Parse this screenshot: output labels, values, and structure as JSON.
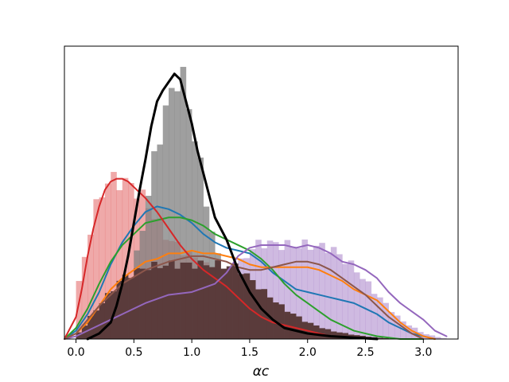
{
  "chart_data": {
    "type": "area",
    "title": "",
    "xlabel": "αc",
    "ylabel": "",
    "xlim": [
      -0.1,
      3.3
    ],
    "ylim": [
      0,
      1.06
    ],
    "x_ticks": [
      "0.0",
      "0.5",
      "1.0",
      "1.5",
      "2.0",
      "2.5",
      "3.0"
    ],
    "x_tick_values": [
      0.0,
      0.5,
      1.0,
      1.5,
      2.0,
      2.5,
      3.0
    ],
    "grid": false,
    "bin_width": 0.05,
    "histograms": [
      {
        "color": "#9467bd",
        "alpha": 0.45,
        "x": [
          0.0,
          0.2,
          0.4,
          0.6,
          0.8,
          1.0,
          1.2,
          1.4,
          1.5,
          1.6,
          1.8,
          2.0,
          2.2,
          2.4,
          2.6,
          2.8,
          3.0,
          3.2
        ],
        "y": [
          0.0,
          0.05,
          0.11,
          0.15,
          0.19,
          0.23,
          0.23,
          0.26,
          0.32,
          0.35,
          0.34,
          0.34,
          0.33,
          0.26,
          0.16,
          0.07,
          0.02,
          0.0
        ]
      },
      {
        "color": "#d62728",
        "alpha": 0.4,
        "x": [
          0.0,
          0.1,
          0.2,
          0.3,
          0.4,
          0.5,
          0.6,
          0.8,
          1.0,
          1.2,
          1.4,
          1.6,
          1.8,
          2.0,
          2.2,
          2.4
        ],
        "y": [
          0.15,
          0.35,
          0.52,
          0.58,
          0.57,
          0.55,
          0.5,
          0.36,
          0.3,
          0.24,
          0.17,
          0.09,
          0.04,
          0.02,
          0.01,
          0.0
        ]
      },
      {
        "color": "#7f7f7f",
        "alpha": 0.75,
        "x": [
          0.1,
          0.3,
          0.5,
          0.6,
          0.7,
          0.8,
          0.9,
          1.0,
          1.1,
          1.2,
          1.3,
          1.4,
          1.5,
          1.6,
          1.8,
          2.0,
          2.2,
          2.4
        ],
        "y": [
          0.0,
          0.05,
          0.25,
          0.46,
          0.71,
          0.86,
          0.98,
          0.8,
          0.56,
          0.33,
          0.2,
          0.14,
          0.08,
          0.05,
          0.02,
          0.01,
          0.0,
          0.0
        ]
      },
      {
        "color": "#5a3b3b",
        "alpha": 1.0,
        "x": [
          0.0,
          0.2,
          0.4,
          0.6,
          0.8,
          1.0,
          1.2,
          1.4,
          1.6,
          1.8,
          2.0,
          2.2,
          2.4,
          2.6,
          2.8
        ],
        "y": [
          0.01,
          0.12,
          0.22,
          0.26,
          0.27,
          0.27,
          0.27,
          0.26,
          0.18,
          0.11,
          0.06,
          0.03,
          0.015,
          0.005,
          0.0
        ]
      }
    ],
    "series": [
      {
        "color": "#1f77b4",
        "width": 2,
        "x": [
          -0.1,
          0.0,
          0.1,
          0.2,
          0.3,
          0.4,
          0.5,
          0.6,
          0.7,
          0.8,
          0.9,
          1.0,
          1.1,
          1.2,
          1.3,
          1.4,
          1.5,
          1.6,
          1.7,
          1.8,
          1.9,
          2.0,
          2.1,
          2.2,
          2.3,
          2.4,
          2.5,
          2.6,
          2.7,
          2.8,
          2.9,
          3.0,
          3.1
        ],
        "y": [
          0.0,
          0.03,
          0.09,
          0.17,
          0.27,
          0.35,
          0.41,
          0.46,
          0.48,
          0.47,
          0.45,
          0.42,
          0.38,
          0.35,
          0.33,
          0.32,
          0.31,
          0.28,
          0.24,
          0.21,
          0.18,
          0.17,
          0.16,
          0.15,
          0.14,
          0.13,
          0.11,
          0.09,
          0.06,
          0.04,
          0.02,
          0.01,
          0.0
        ]
      },
      {
        "color": "#ff7f0e",
        "width": 2,
        "x": [
          -0.1,
          0.0,
          0.1,
          0.2,
          0.3,
          0.4,
          0.5,
          0.6,
          0.7,
          0.8,
          0.9,
          1.0,
          1.1,
          1.2,
          1.3,
          1.4,
          1.5,
          1.6,
          1.7,
          1.8,
          1.9,
          2.0,
          2.1,
          2.2,
          2.3,
          2.4,
          2.5,
          2.6,
          2.7,
          2.8,
          2.9,
          3.0,
          3.1
        ],
        "y": [
          0.0,
          0.02,
          0.06,
          0.12,
          0.18,
          0.22,
          0.25,
          0.28,
          0.29,
          0.31,
          0.31,
          0.32,
          0.31,
          0.31,
          0.3,
          0.29,
          0.27,
          0.26,
          0.26,
          0.26,
          0.26,
          0.26,
          0.25,
          0.23,
          0.21,
          0.18,
          0.16,
          0.14,
          0.1,
          0.06,
          0.03,
          0.01,
          0.0
        ]
      },
      {
        "color": "#2ca02c",
        "width": 2,
        "x": [
          -0.1,
          0.0,
          0.1,
          0.2,
          0.3,
          0.4,
          0.5,
          0.6,
          0.7,
          0.8,
          0.9,
          1.0,
          1.1,
          1.2,
          1.3,
          1.4,
          1.5,
          1.6,
          1.7,
          1.8,
          1.9,
          2.0,
          2.1,
          2.2,
          2.3,
          2.4,
          2.5,
          2.6,
          2.7,
          2.8,
          2.9,
          3.0
        ],
        "y": [
          0.0,
          0.04,
          0.11,
          0.2,
          0.28,
          0.34,
          0.38,
          0.42,
          0.43,
          0.44,
          0.44,
          0.43,
          0.41,
          0.38,
          0.36,
          0.34,
          0.32,
          0.29,
          0.25,
          0.2,
          0.16,
          0.13,
          0.1,
          0.07,
          0.05,
          0.03,
          0.02,
          0.01,
          0.005,
          0.0,
          0.0,
          0.0
        ]
      },
      {
        "color": "#d62728",
        "width": 2,
        "x": [
          -0.1,
          0.0,
          0.05,
          0.1,
          0.15,
          0.2,
          0.25,
          0.3,
          0.35,
          0.4,
          0.45,
          0.5,
          0.6,
          0.7,
          0.8,
          0.9,
          1.0,
          1.1,
          1.2,
          1.3,
          1.4,
          1.5,
          1.6,
          1.7,
          1.8,
          1.9,
          2.0,
          2.1,
          2.2,
          2.4,
          2.6
        ],
        "y": [
          0.0,
          0.08,
          0.18,
          0.3,
          0.4,
          0.48,
          0.54,
          0.57,
          0.58,
          0.58,
          0.57,
          0.55,
          0.51,
          0.46,
          0.4,
          0.34,
          0.29,
          0.25,
          0.22,
          0.19,
          0.15,
          0.11,
          0.08,
          0.06,
          0.05,
          0.04,
          0.03,
          0.02,
          0.01,
          0.005,
          0.0
        ]
      },
      {
        "color": "#9467bd",
        "width": 2,
        "x": [
          -0.1,
          0.0,
          0.2,
          0.4,
          0.6,
          0.8,
          1.0,
          1.2,
          1.3,
          1.4,
          1.5,
          1.6,
          1.7,
          1.8,
          1.9,
          2.0,
          2.1,
          2.2,
          2.3,
          2.4,
          2.5,
          2.6,
          2.7,
          2.8,
          2.9,
          3.0,
          3.1,
          3.2
        ],
        "y": [
          0.0,
          0.01,
          0.05,
          0.09,
          0.13,
          0.16,
          0.17,
          0.2,
          0.24,
          0.3,
          0.33,
          0.34,
          0.34,
          0.34,
          0.33,
          0.34,
          0.33,
          0.31,
          0.28,
          0.27,
          0.25,
          0.22,
          0.17,
          0.13,
          0.1,
          0.07,
          0.03,
          0.01
        ]
      },
      {
        "color": "#8c564b",
        "width": 2,
        "x": [
          -0.1,
          0.0,
          0.2,
          0.4,
          0.6,
          0.8,
          1.0,
          1.1,
          1.2,
          1.3,
          1.4,
          1.5,
          1.6,
          1.7,
          1.8,
          1.9,
          2.0,
          2.1,
          2.2,
          2.3,
          2.4,
          2.5,
          2.6,
          2.7,
          2.8,
          2.9,
          3.0
        ],
        "y": [
          0.0,
          0.02,
          0.12,
          0.2,
          0.25,
          0.28,
          0.3,
          0.3,
          0.29,
          0.28,
          0.26,
          0.25,
          0.25,
          0.26,
          0.27,
          0.28,
          0.28,
          0.27,
          0.25,
          0.22,
          0.19,
          0.16,
          0.12,
          0.08,
          0.05,
          0.02,
          0.0
        ]
      },
      {
        "color": "#000000",
        "width": 3,
        "x": [
          0.1,
          0.2,
          0.3,
          0.35,
          0.4,
          0.45,
          0.5,
          0.55,
          0.6,
          0.65,
          0.7,
          0.75,
          0.8,
          0.85,
          0.9,
          0.95,
          1.0,
          1.05,
          1.1,
          1.15,
          1.2,
          1.3,
          1.4,
          1.5,
          1.6,
          1.7,
          1.8,
          2.0,
          2.2,
          2.4,
          2.6
        ],
        "y": [
          0.0,
          0.02,
          0.06,
          0.12,
          0.2,
          0.3,
          0.42,
          0.54,
          0.65,
          0.77,
          0.86,
          0.9,
          0.93,
          0.96,
          0.94,
          0.86,
          0.78,
          0.68,
          0.6,
          0.52,
          0.44,
          0.36,
          0.25,
          0.17,
          0.11,
          0.07,
          0.04,
          0.02,
          0.01,
          0.005,
          0.0
        ]
      }
    ]
  }
}
